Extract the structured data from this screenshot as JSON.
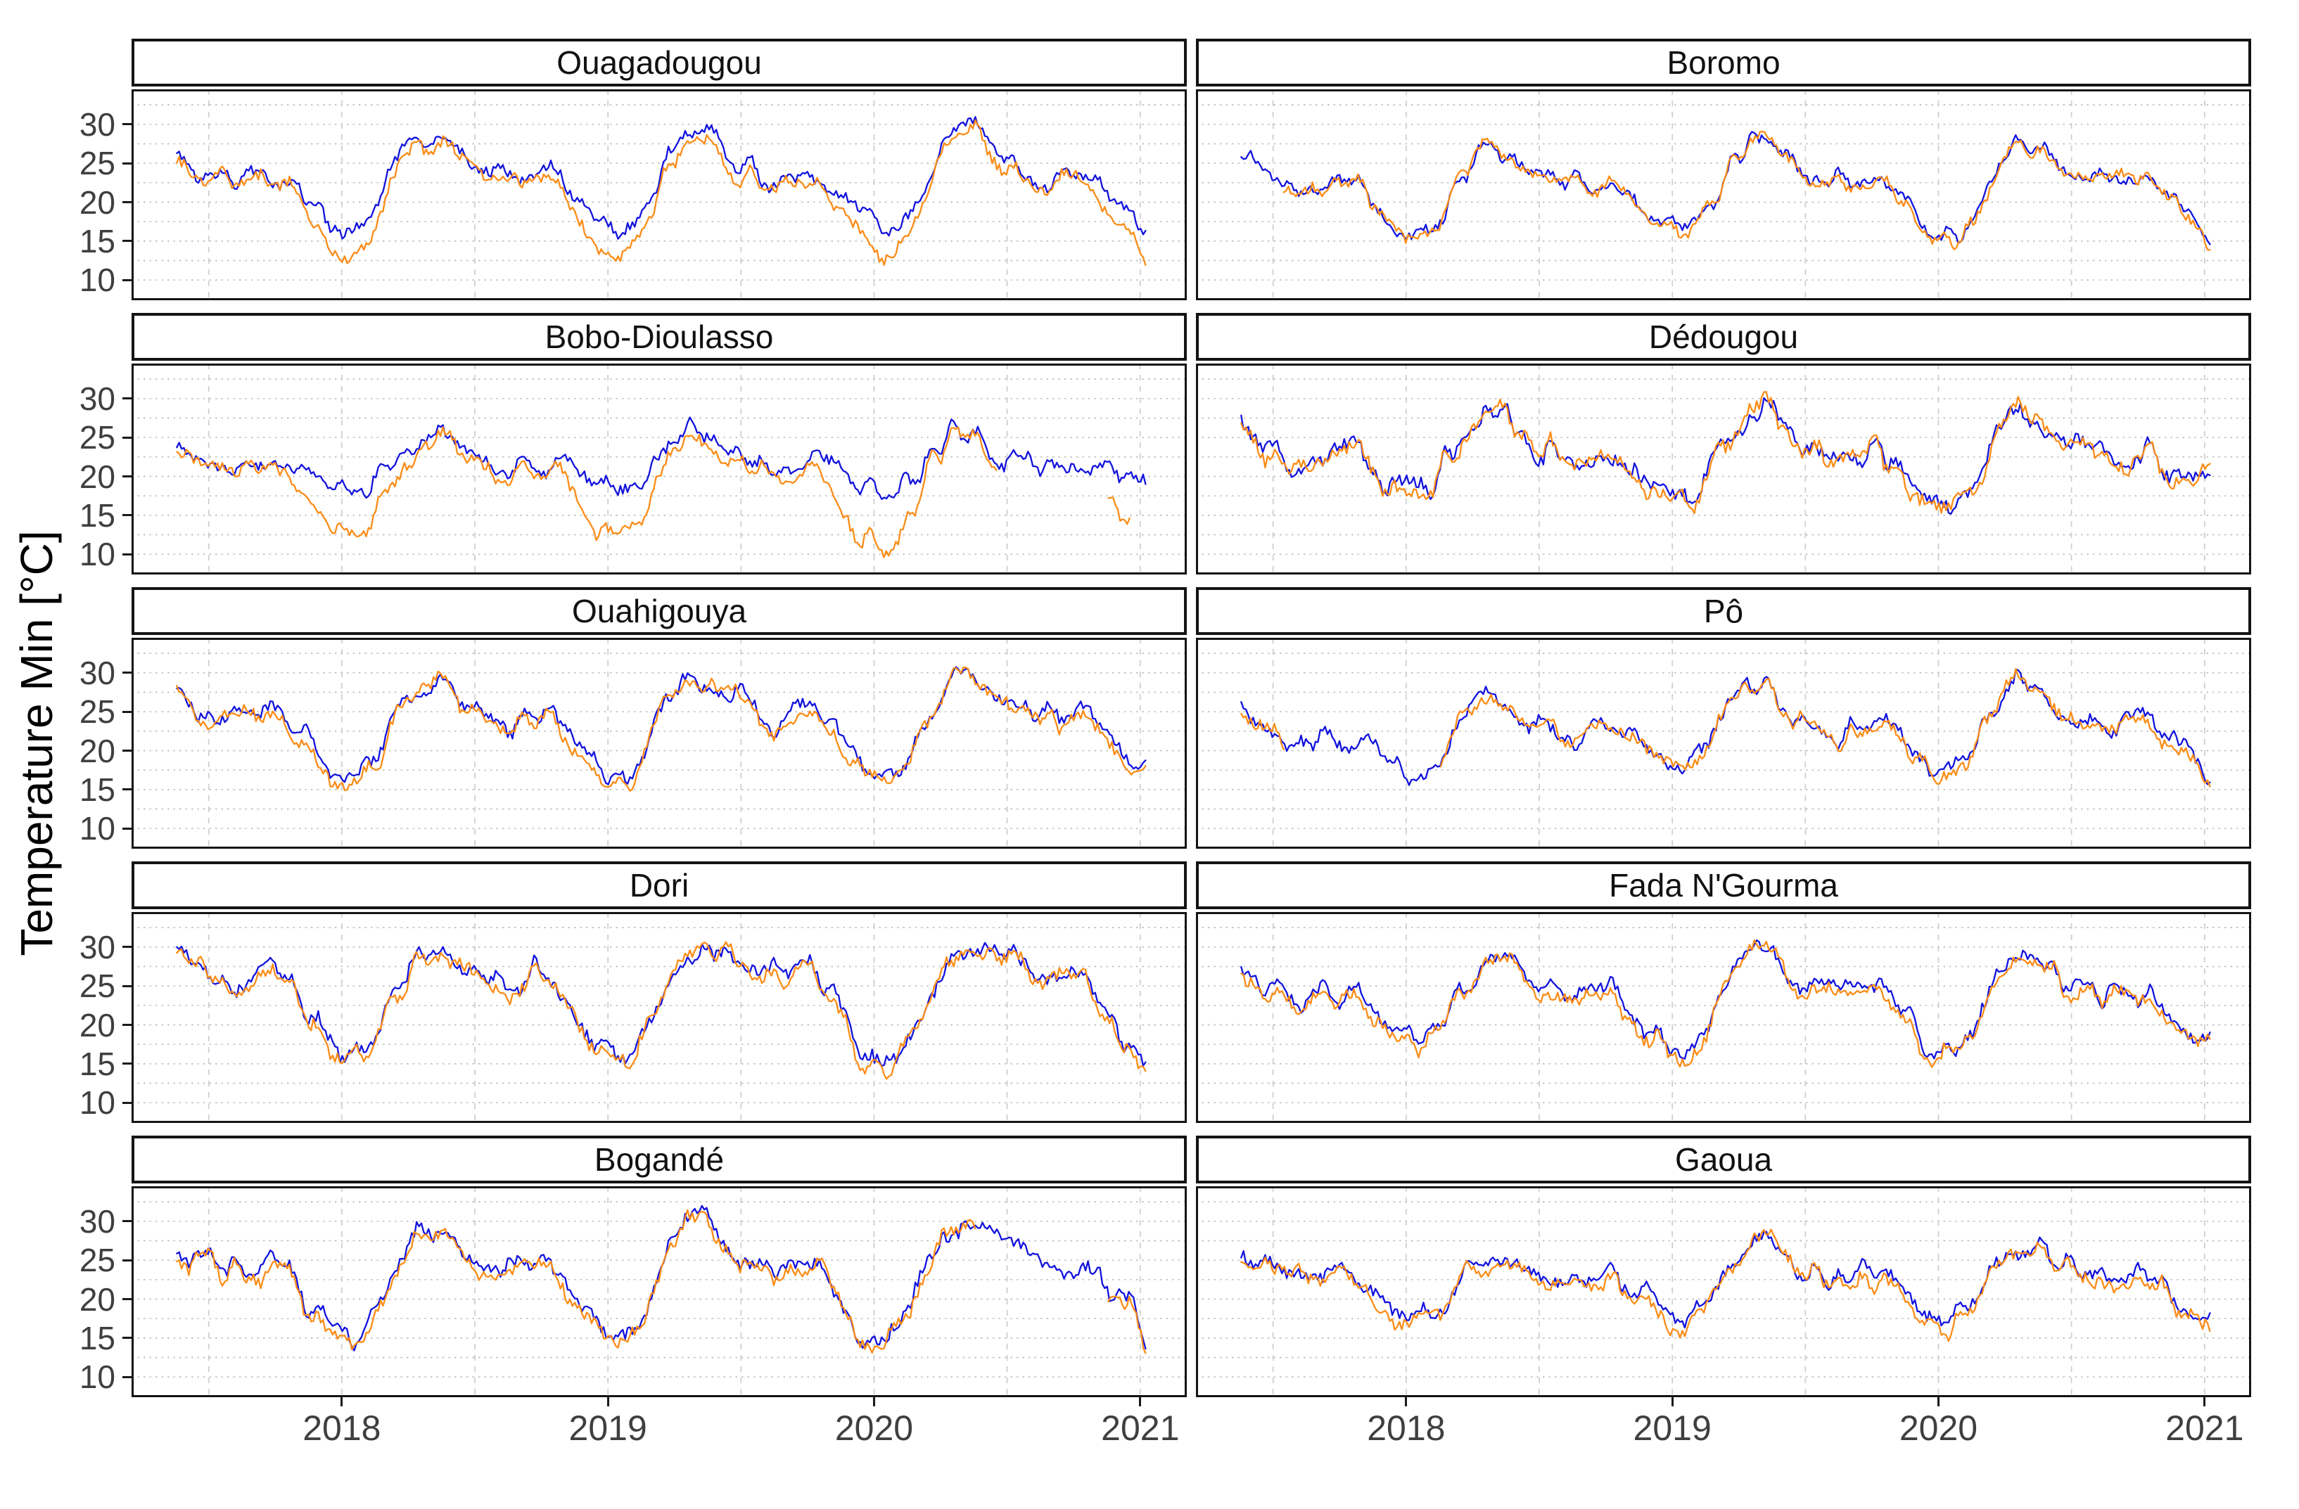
{
  "figure": {
    "y_axis_title": "Temperature Min [°C]",
    "x_axis_title": "",
    "y_ticks": [
      10,
      15,
      20,
      25,
      30
    ],
    "x_ticks": [
      2018,
      2019,
      2020,
      2021
    ],
    "colors": {
      "blue": "#1212dd",
      "orange": "#fb8c17",
      "grid_horizontal": "#bfbfbf",
      "grid_vertical": "#cdcdcd",
      "panel_border": "#141414",
      "tick_text": "#3f3f3f",
      "strip_text": "#111111"
    },
    "legend": "none"
  },
  "chart_data": {
    "type": "line",
    "ylabel": "Temperature Min [°C]",
    "xlabel": "",
    "xlim": [
      2017.21,
      2021.175
    ],
    "ylim": [
      7.4,
      34.5
    ],
    "grid": "on",
    "x_gridlines_every_years": 0.5,
    "y_gridlines_every_deg": 2.5,
    "series_names": [
      "blue",
      "orange"
    ],
    "x": [
      2017.38,
      2017.46,
      2017.54,
      2017.63,
      2017.71,
      2017.79,
      2017.88,
      2017.96,
      2018.04,
      2018.13,
      2018.21,
      2018.29,
      2018.38,
      2018.46,
      2018.54,
      2018.63,
      2018.71,
      2018.79,
      2018.88,
      2018.96,
      2019.04,
      2019.13,
      2019.21,
      2019.29,
      2019.38,
      2019.46,
      2019.54,
      2019.63,
      2019.71,
      2019.79,
      2019.88,
      2019.96,
      2020.04,
      2020.13,
      2020.21,
      2020.29,
      2020.38,
      2020.46,
      2020.54,
      2020.63,
      2020.71,
      2020.79,
      2020.88,
      2020.96,
      2021.02
    ],
    "panels": [
      {
        "title": "Ouagadougou",
        "noise": 1.5,
        "series": {
          "blue": [
            27.5,
            24.5,
            23.5,
            23,
            23.5,
            23.5,
            20,
            17.5,
            17,
            19.5,
            25,
            28,
            28.5,
            25.5,
            23.5,
            23,
            23,
            24,
            21,
            17.5,
            17,
            19,
            24.5,
            28.5,
            29,
            26,
            24,
            23,
            23.5,
            24,
            21,
            17.5,
            17,
            19.5,
            24,
            28.5,
            29.5,
            27,
            24.5,
            23.5,
            23.5,
            23.5,
            21.5,
            19.5,
            16
          ],
          "orange": [
            26,
            23.5,
            22.5,
            22.5,
            23,
            23,
            18,
            14.5,
            13.5,
            17,
            23.5,
            27,
            27.5,
            24.5,
            22.5,
            22.5,
            22.5,
            23,
            18.5,
            14.5,
            13.5,
            16.5,
            23,
            27.5,
            28,
            25,
            23,
            22.5,
            23,
            23.5,
            18.5,
            14,
            13.5,
            17,
            23,
            28,
            29,
            26,
            23.5,
            23,
            23,
            23,
            19,
            17,
            11.5
          ]
        }
      },
      {
        "title": "Boromo",
        "noise": 1.4,
        "series": {
          "blue": [
            25.5,
            24,
            22.5,
            22,
            22.5,
            23,
            20,
            17,
            16.5,
            18.5,
            23.5,
            26.5,
            26.5,
            24,
            22.5,
            22,
            22.5,
            23,
            20.5,
            17,
            16,
            18.5,
            24,
            27.5,
            27,
            24,
            22.5,
            22.5,
            22.5,
            23,
            20,
            16.5,
            15.5,
            18,
            23.5,
            27,
            27,
            24.5,
            23,
            22.5,
            22.5,
            23,
            20.5,
            18,
            15.5
          ],
          "orange": [
            null,
            null,
            22.5,
            22,
            22.5,
            23,
            19.5,
            16.5,
            16,
            18,
            23.5,
            26.5,
            26.5,
            24,
            22.5,
            22,
            22.5,
            23,
            20,
            16.5,
            15.5,
            18,
            24,
            27.5,
            27,
            24,
            22.5,
            22.5,
            22.5,
            23,
            19.5,
            16,
            15,
            17.5,
            23.5,
            27,
            27,
            24.5,
            23,
            22.5,
            22.5,
            23,
            20,
            17.5,
            15
          ]
        }
      },
      {
        "title": "Bobo-Dioulasso",
        "noise": 1.45,
        "series": {
          "blue": [
            23.5,
            22,
            21.5,
            21,
            21.5,
            22,
            20.5,
            19,
            18.5,
            19.5,
            22,
            25,
            25.5,
            22.5,
            21.5,
            21,
            21.5,
            22,
            21,
            19,
            18,
            19.5,
            23,
            25.5,
            25.5,
            22.5,
            21.5,
            21.5,
            21.5,
            22,
            20.5,
            18.5,
            17.5,
            19,
            22.5,
            26,
            26,
            23,
            22,
            21.5,
            21.5,
            21.5,
            21,
            20.5,
            19
          ],
          "orange": [
            22.5,
            21.5,
            21,
            20.5,
            21,
            21.5,
            16.5,
            13.5,
            13,
            15,
            20,
            24,
            25,
            22,
            21,
            20.5,
            21,
            21.5,
            17,
            13,
            12.5,
            15.5,
            21,
            25,
            25,
            22,
            21,
            21,
            21,
            21,
            14.5,
            11.5,
            11,
            14,
            21,
            25.5,
            25.5,
            23,
            null,
            null,
            null,
            null,
            17,
            14.5,
            null
          ]
        }
      },
      {
        "title": "Dédougou",
        "noise": 1.9,
        "series": {
          "blue": [
            27,
            24,
            22.5,
            22,
            22.5,
            23,
            20.5,
            18,
            17.5,
            20,
            25,
            28,
            28,
            24.5,
            23,
            22.5,
            22.5,
            23.5,
            20.5,
            17.5,
            16.5,
            19.5,
            25,
            29,
            28.5,
            25,
            23,
            22.5,
            22.5,
            23.5,
            20.5,
            17,
            16.5,
            19.5,
            24.5,
            28.5,
            28.5,
            25.5,
            23.5,
            22.5,
            23,
            23,
            21,
            20,
            19.5
          ],
          "orange": [
            26.5,
            23.5,
            22.5,
            22,
            22.5,
            23,
            20,
            17.5,
            17,
            19.5,
            25,
            28,
            28,
            24.5,
            22.5,
            22,
            22.5,
            23.5,
            20,
            17,
            16,
            19,
            25,
            29.5,
            28.5,
            25,
            22.5,
            22.5,
            22.5,
            23.5,
            20,
            16.5,
            16,
            19,
            24.5,
            29,
            29,
            25.5,
            23,
            22.5,
            23,
            23,
            20.5,
            19.5,
            19
          ]
        }
      },
      {
        "title": "Ouahigouya",
        "noise": 1.55,
        "series": {
          "blue": [
            27.5,
            25.5,
            24.5,
            24,
            24.5,
            24.5,
            21,
            18,
            17,
            19.5,
            25,
            28.5,
            29,
            26.5,
            25,
            24,
            24.5,
            25,
            21.5,
            17.5,
            16.5,
            19,
            25,
            29,
            29.5,
            27,
            25,
            24,
            24.5,
            25,
            21.5,
            17,
            16,
            19.5,
            25,
            29.5,
            30,
            27.5,
            25.5,
            24,
            24.5,
            24.5,
            22,
            19.5,
            18
          ],
          "orange": [
            27,
            25,
            24,
            23.5,
            24,
            24,
            20,
            17,
            16,
            19,
            24.5,
            28.5,
            29,
            26.5,
            24.5,
            23.5,
            24,
            24.5,
            20.5,
            16.5,
            15.5,
            18.5,
            25,
            29,
            29.5,
            27,
            24.5,
            23.5,
            24,
            24.5,
            20.5,
            16,
            15,
            19,
            25,
            29.5,
            30,
            27.5,
            25,
            23.5,
            24,
            24,
            21,
            18.5,
            17.5
          ]
        }
      },
      {
        "title": "Pô",
        "noise": 1.5,
        "series": {
          "blue": [
            26.5,
            23.5,
            22,
            21.5,
            21.5,
            22,
            20.5,
            18.5,
            17.5,
            19.5,
            24,
            27,
            27,
            24,
            22.5,
            22,
            22.5,
            23,
            21,
            18.5,
            18,
            20.5,
            25,
            28.5,
            28,
            24.5,
            22.5,
            22,
            22.5,
            23,
            21,
            18,
            17,
            20,
            25,
            29,
            28.5,
            25,
            23.5,
            22.5,
            23,
            23.5,
            21.5,
            19,
            17
          ],
          "orange": [
            26,
            23,
            21.5,
            null,
            null,
            null,
            null,
            null,
            null,
            19.5,
            24,
            26.5,
            27,
            24,
            22.5,
            22,
            22.5,
            23,
            20.5,
            18,
            17.5,
            20,
            25,
            28.5,
            28,
            24.5,
            22.5,
            22,
            22.5,
            23,
            20.5,
            17.5,
            16.5,
            19.5,
            25,
            29,
            28.5,
            25,
            23.5,
            22.5,
            23,
            23.5,
            21,
            18.5,
            16.5
          ]
        }
      },
      {
        "title": "Dori",
        "noise": 1.75,
        "series": {
          "blue": [
            29.5,
            27.5,
            26.5,
            25.5,
            26.5,
            26,
            21,
            17.5,
            16.5,
            18.5,
            24.5,
            28.5,
            30,
            28.5,
            27,
            25.5,
            27,
            26.5,
            21.5,
            17,
            15.5,
            18,
            24,
            29.5,
            30.5,
            29,
            27,
            26,
            27,
            26,
            21,
            16,
            15,
            18,
            24,
            29.5,
            30.5,
            29,
            27.5,
            26,
            26.5,
            25.5,
            21.5,
            18,
            15.5
          ],
          "orange": [
            29,
            27,
            26,
            25,
            26,
            25.5,
            20,
            16.5,
            15.5,
            18,
            24,
            28.5,
            30,
            28.5,
            26.5,
            25,
            26.5,
            26,
            20.5,
            16,
            14.5,
            17.5,
            24,
            29.5,
            30.5,
            29,
            26.5,
            25.5,
            26.5,
            25.5,
            20,
            15,
            14,
            17.5,
            24,
            29.5,
            30.5,
            29,
            27,
            25.5,
            26,
            25,
            20.5,
            17,
            14.5
          ]
        }
      },
      {
        "title": "Fada N'Gourma",
        "noise": 1.6,
        "series": {
          "blue": [
            28,
            25,
            23.5,
            23,
            23.5,
            24,
            21,
            18.5,
            18,
            20,
            25,
            28,
            28.5,
            25.5,
            24,
            23,
            23.5,
            24.5,
            21,
            18,
            17.5,
            20,
            25.5,
            29,
            29,
            25.5,
            24,
            23.5,
            24,
            24.5,
            21,
            17.5,
            17,
            19.5,
            25,
            29,
            29,
            26,
            24.5,
            23.5,
            23.5,
            24,
            21.5,
            19,
            18
          ],
          "orange": [
            27.5,
            24.5,
            23,
            22.5,
            23,
            23.5,
            20,
            17.5,
            17,
            19.5,
            24.5,
            27.5,
            28,
            25,
            23,
            22.5,
            23,
            24,
            20,
            17,
            16.5,
            19.5,
            25,
            29,
            28.5,
            25,
            23.5,
            23,
            23.5,
            24,
            20,
            16.5,
            16,
            19,
            24.5,
            28.5,
            28.5,
            25.5,
            23.5,
            23,
            23,
            23.5,
            20.5,
            18,
            17
          ]
        }
      },
      {
        "title": "Bogandé",
        "noise": 1.75,
        "series": {
          "blue": [
            27.5,
            25,
            24,
            23.5,
            24,
            24,
            19.5,
            15.5,
            15,
            18,
            24.5,
            28.5,
            28.5,
            26,
            24,
            23.5,
            24,
            25,
            20.5,
            16.5,
            15.5,
            18.5,
            25,
            30,
            30,
            27,
            24.5,
            24,
            24.5,
            25,
            20.5,
            16,
            15,
            18,
            25,
            29.5,
            30,
            28,
            25.5,
            24.5,
            23.5,
            23,
            21.5,
            19.5,
            15.5
          ],
          "orange": [
            27,
            24.5,
            23.5,
            23,
            23.5,
            23.5,
            19,
            15,
            14.5,
            17.5,
            24,
            28.5,
            28.5,
            26,
            23.5,
            23,
            23.5,
            24.5,
            20,
            16,
            15,
            18,
            25,
            30,
            30,
            27,
            24,
            23.5,
            24,
            24.5,
            20,
            15.5,
            14.5,
            17.5,
            25,
            29.5,
            30,
            null,
            null,
            null,
            null,
            null,
            20.5,
            19,
            15
          ]
        }
      },
      {
        "title": "Gaoua",
        "noise": 1.6,
        "series": {
          "blue": [
            25.5,
            24,
            23,
            22.5,
            23,
            23.5,
            21,
            19,
            18,
            19.5,
            23,
            25.5,
            25.5,
            23.5,
            22.5,
            22,
            22.5,
            23,
            21,
            18.5,
            17.5,
            19.5,
            24,
            27,
            27.5,
            24,
            23,
            22.5,
            23,
            23.5,
            20.5,
            17.5,
            17,
            19,
            23.5,
            26.5,
            27,
            24.5,
            23.5,
            23,
            23,
            23,
            20.5,
            19,
            16.5
          ],
          "orange": [
            25,
            23.5,
            22.5,
            22,
            22.5,
            23,
            20,
            18,
            17,
            19,
            22.5,
            25.5,
            25.5,
            23.5,
            22,
            21.5,
            22,
            22.5,
            20,
            17.5,
            16.5,
            19,
            24,
            27,
            27.5,
            24,
            22.5,
            22,
            22.5,
            23,
            19.5,
            16.5,
            16,
            18.5,
            23.5,
            26.5,
            27,
            24.5,
            23,
            22.5,
            22.5,
            22.5,
            19.5,
            18,
            15.5
          ]
        }
      }
    ]
  }
}
